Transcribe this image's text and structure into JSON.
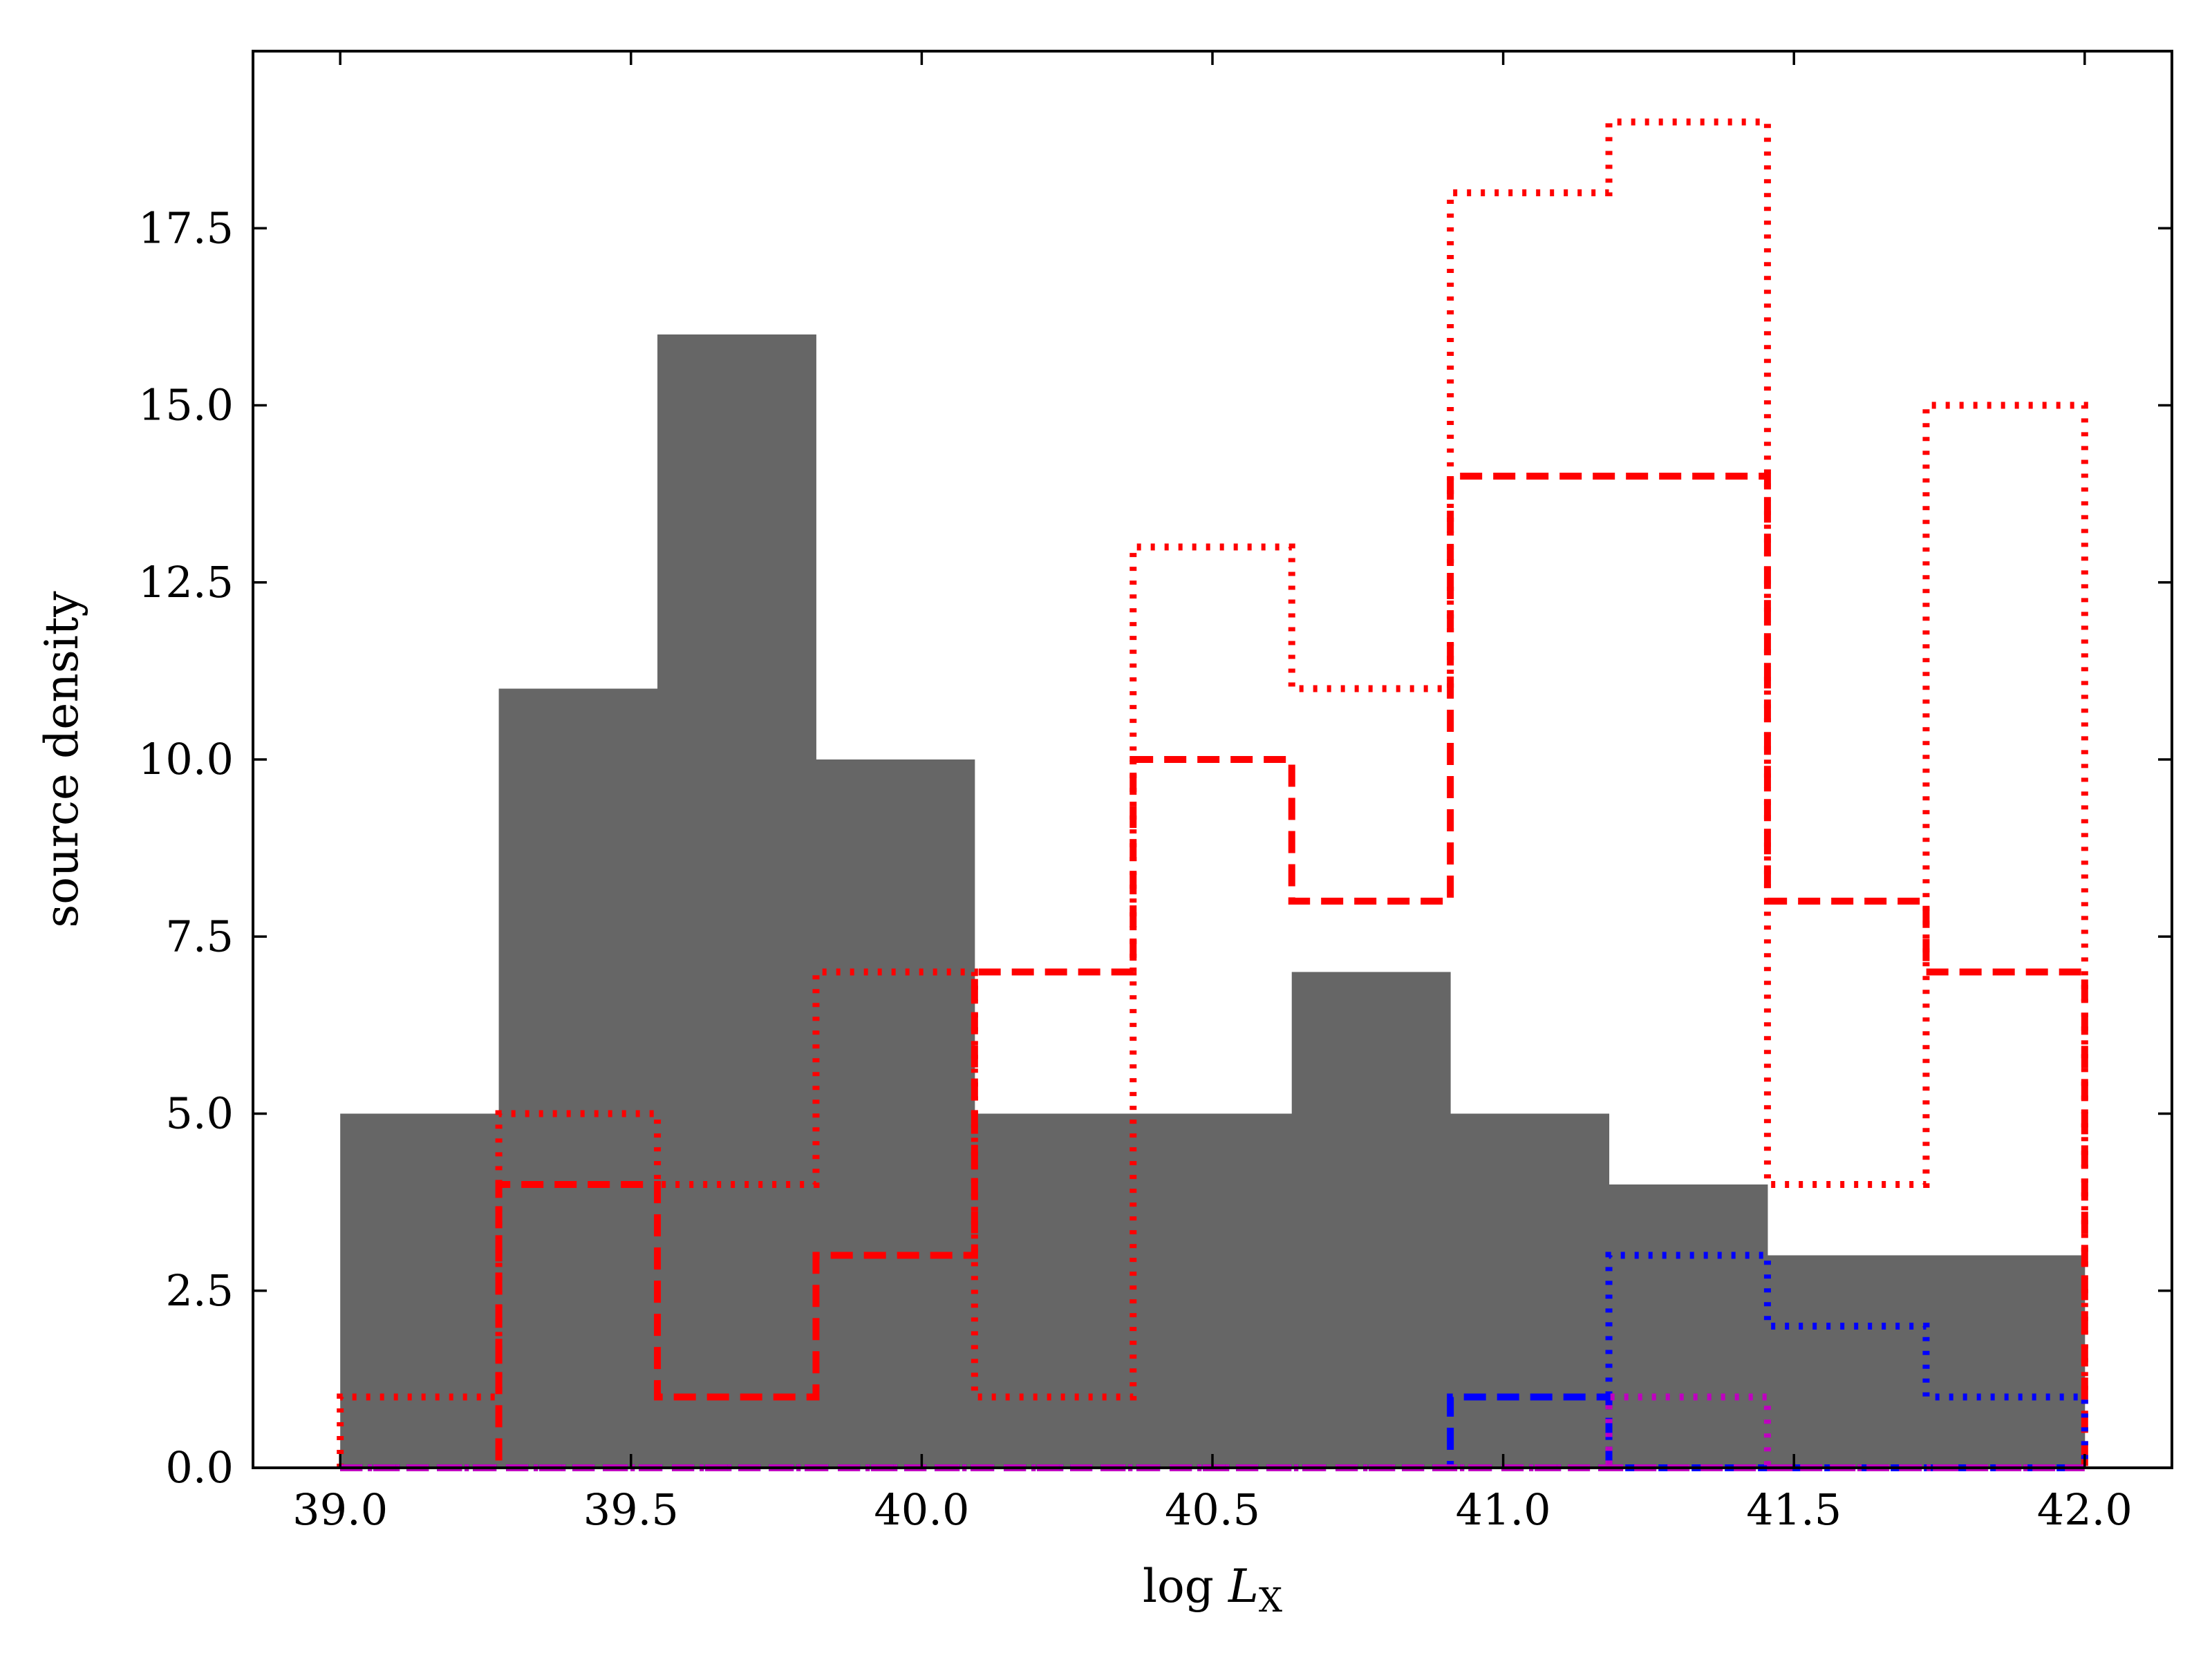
{
  "chart_data": {
    "type": "histogram",
    "xlabel_text": "log ",
    "xlabel_var": "L",
    "xlabel_sub": "X",
    "ylabel": "source density",
    "xlim": [
      38.85,
      42.15
    ],
    "ylim": [
      0,
      20
    ],
    "xticks": [
      39.0,
      39.5,
      40.0,
      40.5,
      41.0,
      41.5,
      42.0
    ],
    "xtick_labels": [
      "39.0",
      "39.5",
      "40.0",
      "40.5",
      "41.0",
      "41.5",
      "42.0"
    ],
    "yticks": [
      0,
      2.5,
      5,
      7.5,
      10,
      12.5,
      15,
      17.5
    ],
    "ytick_labels": [
      "0.0",
      "2.5",
      "5.0",
      "7.5",
      "10.0",
      "12.5",
      "15.0",
      "17.5"
    ],
    "grid": false,
    "bin_edges": [
      39.0,
      39.2727,
      39.5455,
      39.8182,
      40.0909,
      40.3636,
      40.6364,
      40.9091,
      41.1818,
      41.4545,
      41.7273,
      42.0
    ],
    "series": [
      {
        "style": "filled",
        "color": "#666666",
        "values": [
          5,
          11,
          16,
          10,
          5,
          5,
          7,
          5,
          4,
          3,
          3
        ]
      },
      {
        "style": "dotted",
        "color": "#ff0000",
        "values": [
          1,
          5,
          4,
          7,
          1,
          13,
          11,
          18,
          19,
          4,
          15
        ]
      },
      {
        "style": "dashed",
        "color": "#ff0000",
        "values": [
          0,
          4,
          1,
          3,
          7,
          10,
          8,
          14,
          14,
          8,
          7
        ]
      },
      {
        "style": "dotted",
        "color": "#0000ff",
        "values": [
          0,
          0,
          0,
          0,
          0,
          0,
          0,
          0,
          3,
          2,
          1
        ]
      },
      {
        "style": "dashed",
        "color": "#0000ff",
        "values": [
          0,
          0,
          0,
          0,
          0,
          0,
          0,
          1,
          0,
          0,
          0
        ]
      },
      {
        "style": "dotted",
        "color": "#bf00bf",
        "values": [
          0,
          0,
          0,
          0,
          0,
          0,
          0,
          0,
          1,
          0,
          0
        ]
      },
      {
        "style": "dashed",
        "color": "#bf00bf",
        "values": [
          0,
          0,
          0,
          0,
          0,
          0,
          0,
          0,
          0,
          0,
          0
        ]
      }
    ]
  }
}
